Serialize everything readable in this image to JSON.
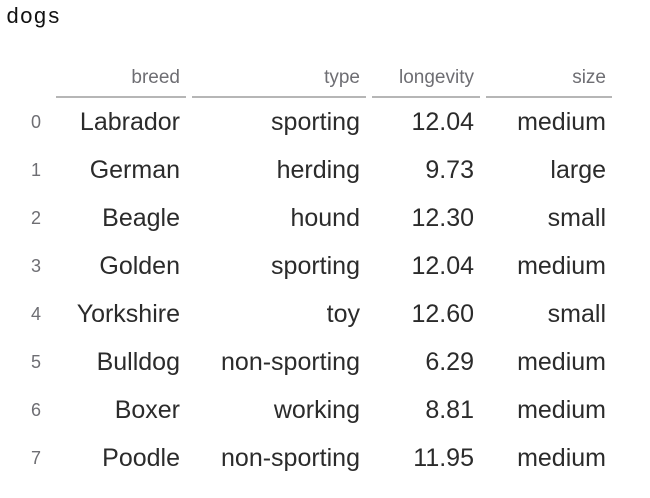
{
  "title": "dogs",
  "table": {
    "columns": [
      "breed",
      "type",
      "longevity",
      "size"
    ],
    "rows": [
      {
        "index": "0",
        "breed": "Labrador",
        "type": "sporting",
        "longevity": "12.04",
        "size": "medium"
      },
      {
        "index": "1",
        "breed": "German",
        "type": "herding",
        "longevity": "9.73",
        "size": "large"
      },
      {
        "index": "2",
        "breed": "Beagle",
        "type": "hound",
        "longevity": "12.30",
        "size": "small"
      },
      {
        "index": "3",
        "breed": "Golden",
        "type": "sporting",
        "longevity": "12.04",
        "size": "medium"
      },
      {
        "index": "4",
        "breed": "Yorkshire",
        "type": "toy",
        "longevity": "12.60",
        "size": "small"
      },
      {
        "index": "5",
        "breed": "Bulldog",
        "type": "non-sporting",
        "longevity": "6.29",
        "size": "medium"
      },
      {
        "index": "6",
        "breed": "Boxer",
        "type": "working",
        "longevity": "8.81",
        "size": "medium"
      },
      {
        "index": "7",
        "breed": "Poodle",
        "type": "non-sporting",
        "longevity": "11.95",
        "size": "medium"
      }
    ]
  }
}
